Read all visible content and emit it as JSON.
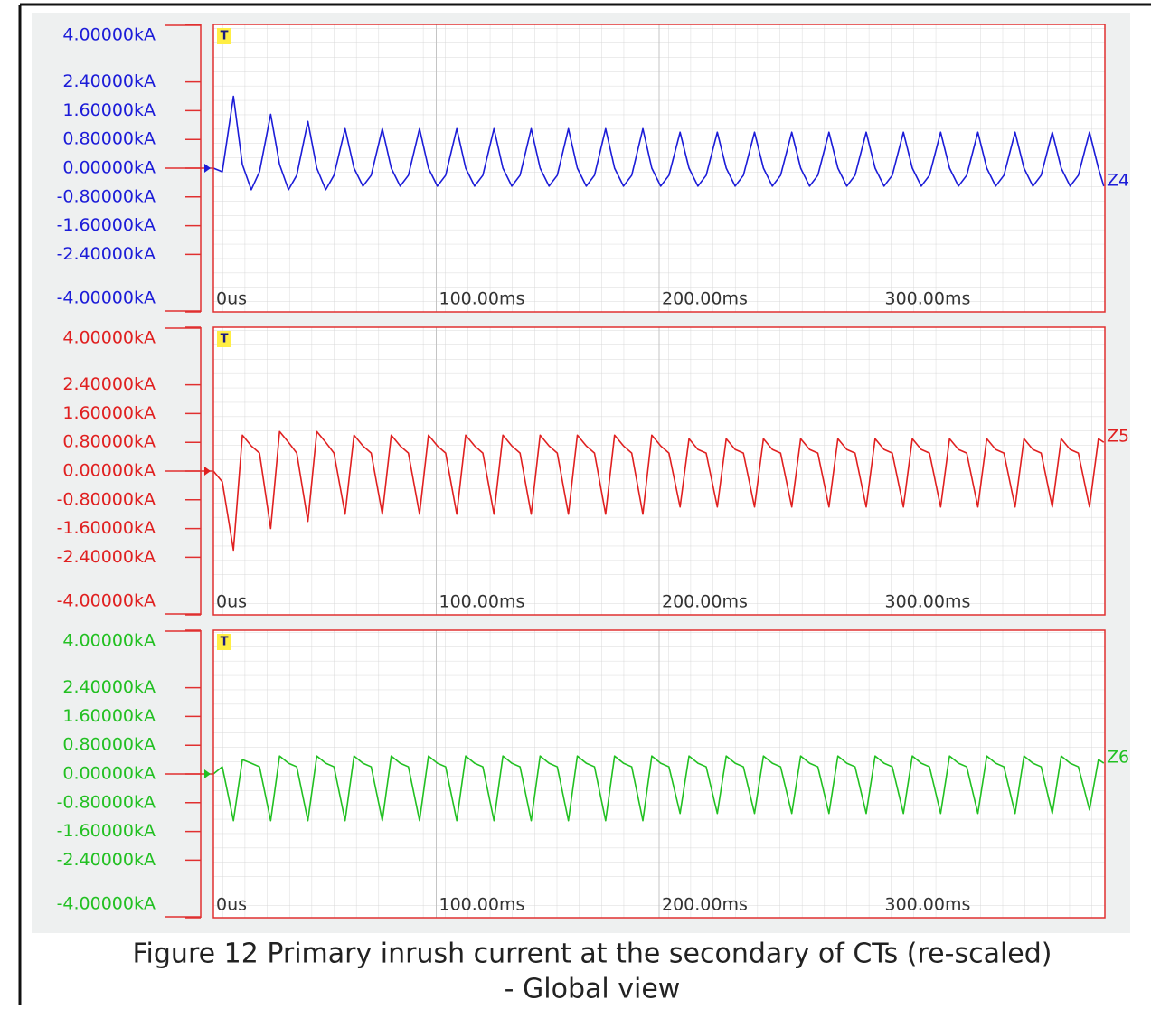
{
  "chart_data": [
    {
      "type": "line",
      "marker": "T",
      "xlim": [
        0,
        400
      ],
      "xticks": [
        {
          "value": 0,
          "label": "0us"
        },
        {
          "value": 100,
          "label": "100.00ms"
        },
        {
          "value": 200,
          "label": "200.00ms"
        },
        {
          "value": 300,
          "label": "300.00ms"
        }
      ],
      "ylim": [
        -4,
        4
      ],
      "yticks": [
        {
          "value": 4,
          "label": "4.00000kA"
        },
        {
          "value": 2.4,
          "label": "2.40000kA"
        },
        {
          "value": 1.6,
          "label": "1.60000kA"
        },
        {
          "value": 0.8,
          "label": "0.80000kA"
        },
        {
          "value": 0,
          "label": "0.00000kA"
        },
        {
          "value": -0.8,
          "label": "-0.80000kA"
        },
        {
          "value": -1.6,
          "label": "-1.60000kA"
        },
        {
          "value": -2.4,
          "label": "-2.40000kA"
        },
        {
          "value": -4,
          "label": "-4.00000kA"
        }
      ],
      "x": [
        0,
        4,
        9,
        13,
        17,
        20.7,
        25.7,
        29.7,
        33.7,
        37.4,
        42.4,
        46.4,
        50.4,
        54.1,
        59.1,
        63.1,
        67.1,
        70.8,
        75.8,
        79.8,
        83.8,
        87.5,
        92.5,
        96.5,
        100.5,
        104.2,
        109.2,
        113.2,
        117.2,
        120.9,
        125.9,
        129.9,
        133.9,
        137.6,
        142.6,
        146.6,
        150.6,
        154.3,
        159.3,
        163.3,
        167.3,
        171,
        176,
        180,
        184,
        187.7,
        192.7,
        196.7,
        200.7,
        204.4,
        209.4,
        213.4,
        217.4,
        221.1,
        226.1,
        230.1,
        234.1,
        237.8,
        242.8,
        246.8,
        250.8,
        254.5,
        259.5,
        263.5,
        267.5,
        271.2,
        276.2,
        280.2,
        284.2,
        287.9,
        292.9,
        296.9,
        300.9,
        304.6,
        309.6,
        313.6,
        317.6,
        321.3,
        326.3,
        330.3,
        334.3,
        338,
        343,
        347,
        351,
        354.7,
        359.7,
        363.7,
        367.7,
        371.4,
        376.4,
        380.4,
        384.4,
        388.1,
        393.1,
        397.1,
        399.5
      ],
      "series": [
        {
          "name": "Z4",
          "color": "#1c1cd8",
          "values": [
            0,
            -0.1,
            2.0,
            0.1,
            -0.6,
            -0.1,
            1.5,
            0.1,
            -0.6,
            -0.2,
            1.3,
            0,
            -0.6,
            -0.2,
            1.1,
            0,
            -0.5,
            -0.2,
            1.1,
            0,
            -0.5,
            -0.2,
            1.1,
            0,
            -0.5,
            -0.2,
            1.1,
            0,
            -0.5,
            -0.2,
            1.1,
            0,
            -0.5,
            -0.2,
            1.1,
            0,
            -0.5,
            -0.2,
            1.1,
            0,
            -0.5,
            -0.2,
            1.1,
            0,
            -0.5,
            -0.2,
            1.1,
            0,
            -0.5,
            -0.2,
            1.0,
            0,
            -0.5,
            -0.2,
            1.0,
            0,
            -0.5,
            -0.2,
            1.0,
            0,
            -0.5,
            -0.2,
            1.0,
            0,
            -0.5,
            -0.2,
            1.0,
            0,
            -0.5,
            -0.2,
            1.0,
            0,
            -0.5,
            -0.2,
            1.0,
            0,
            -0.5,
            -0.2,
            1.0,
            0,
            -0.5,
            -0.2,
            1.0,
            0,
            -0.5,
            -0.2,
            1.0,
            0,
            -0.5,
            -0.2,
            1.0,
            0,
            -0.5,
            -0.2,
            1.0,
            0,
            -0.5
          ]
        }
      ]
    },
    {
      "type": "line",
      "marker": "T",
      "xlim": [
        0,
        400
      ],
      "xticks": [
        {
          "value": 0,
          "label": "0us"
        },
        {
          "value": 100,
          "label": "100.00ms"
        },
        {
          "value": 200,
          "label": "200.00ms"
        },
        {
          "value": 300,
          "label": "300.00ms"
        }
      ],
      "ylim": [
        -4,
        4
      ],
      "yticks": [
        {
          "value": 4,
          "label": "4.00000kA"
        },
        {
          "value": 2.4,
          "label": "2.40000kA"
        },
        {
          "value": 1.6,
          "label": "1.60000kA"
        },
        {
          "value": 0.8,
          "label": "0.80000kA"
        },
        {
          "value": 0,
          "label": "0.00000kA"
        },
        {
          "value": -0.8,
          "label": "-0.80000kA"
        },
        {
          "value": -1.6,
          "label": "-1.60000kA"
        },
        {
          "value": -2.4,
          "label": "-2.40000kA"
        },
        {
          "value": -4,
          "label": "-4.00000kA"
        }
      ],
      "x": [
        0,
        4,
        9,
        13,
        17,
        20.7,
        25.7,
        29.7,
        33.7,
        37.4,
        42.4,
        46.4,
        50.4,
        54.1,
        59.1,
        63.1,
        67.1,
        70.8,
        75.8,
        79.8,
        83.8,
        87.5,
        92.5,
        96.5,
        100.5,
        104.2,
        109.2,
        113.2,
        117.2,
        120.9,
        125.9,
        129.9,
        133.9,
        137.6,
        142.6,
        146.6,
        150.6,
        154.3,
        159.3,
        163.3,
        167.3,
        171,
        176,
        180,
        184,
        187.7,
        192.7,
        196.7,
        200.7,
        204.4,
        209.4,
        213.4,
        217.4,
        221.1,
        226.1,
        230.1,
        234.1,
        237.8,
        242.8,
        246.8,
        250.8,
        254.5,
        259.5,
        263.5,
        267.5,
        271.2,
        276.2,
        280.2,
        284.2,
        287.9,
        292.9,
        296.9,
        300.9,
        304.6,
        309.6,
        313.6,
        317.6,
        321.3,
        326.3,
        330.3,
        334.3,
        338,
        343,
        347,
        351,
        354.7,
        359.7,
        363.7,
        367.7,
        371.4,
        376.4,
        380.4,
        384.4,
        388.1,
        393.1,
        397.1,
        399.5
      ],
      "series": [
        {
          "name": "Z5",
          "color": "#e02020",
          "values": [
            0,
            -0.3,
            -2.2,
            1.0,
            0.7,
            0.5,
            -1.6,
            1.1,
            0.8,
            0.5,
            -1.4,
            1.1,
            0.8,
            0.5,
            -1.2,
            1.0,
            0.7,
            0.5,
            -1.2,
            1.0,
            0.7,
            0.5,
            -1.2,
            1.0,
            0.7,
            0.5,
            -1.2,
            1.0,
            0.7,
            0.5,
            -1.2,
            1.0,
            0.7,
            0.5,
            -1.2,
            1.0,
            0.7,
            0.5,
            -1.2,
            1.0,
            0.7,
            0.5,
            -1.2,
            1.0,
            0.7,
            0.5,
            -1.2,
            1.0,
            0.7,
            0.5,
            -1.0,
            0.9,
            0.6,
            0.5,
            -1.0,
            0.9,
            0.6,
            0.5,
            -1.0,
            0.9,
            0.6,
            0.5,
            -1.0,
            0.9,
            0.6,
            0.5,
            -1.0,
            0.9,
            0.6,
            0.5,
            -1.0,
            0.9,
            0.6,
            0.5,
            -1.0,
            0.9,
            0.6,
            0.5,
            -1.0,
            0.9,
            0.6,
            0.5,
            -1.0,
            0.9,
            0.6,
            0.5,
            -1.0,
            0.9,
            0.6,
            0.5,
            -1.0,
            0.9,
            0.6,
            0.5,
            -1.0,
            0.9,
            0.8
          ]
        }
      ]
    },
    {
      "type": "line",
      "marker": "T",
      "xlim": [
        0,
        400
      ],
      "xticks": [
        {
          "value": 0,
          "label": "0us"
        },
        {
          "value": 100,
          "label": "100.00ms"
        },
        {
          "value": 200,
          "label": "200.00ms"
        },
        {
          "value": 300,
          "label": "300.00ms"
        }
      ],
      "ylim": [
        -4,
        4
      ],
      "yticks": [
        {
          "value": 4,
          "label": "4.00000kA"
        },
        {
          "value": 2.4,
          "label": "2.40000kA"
        },
        {
          "value": 1.6,
          "label": "1.60000kA"
        },
        {
          "value": 0.8,
          "label": "0.80000kA"
        },
        {
          "value": 0,
          "label": "0.00000kA"
        },
        {
          "value": -0.8,
          "label": "-0.80000kA"
        },
        {
          "value": -1.6,
          "label": "-1.60000kA"
        },
        {
          "value": -2.4,
          "label": "-2.40000kA"
        },
        {
          "value": -4,
          "label": "-4.00000kA"
        }
      ],
      "x": [
        0,
        4,
        9,
        13,
        17,
        20.7,
        25.7,
        29.7,
        33.7,
        37.4,
        42.4,
        46.4,
        50.4,
        54.1,
        59.1,
        63.1,
        67.1,
        70.8,
        75.8,
        79.8,
        83.8,
        87.5,
        92.5,
        96.5,
        100.5,
        104.2,
        109.2,
        113.2,
        117.2,
        120.9,
        125.9,
        129.9,
        133.9,
        137.6,
        142.6,
        146.6,
        150.6,
        154.3,
        159.3,
        163.3,
        167.3,
        171,
        176,
        180,
        184,
        187.7,
        192.7,
        196.7,
        200.7,
        204.4,
        209.4,
        213.4,
        217.4,
        221.1,
        226.1,
        230.1,
        234.1,
        237.8,
        242.8,
        246.8,
        250.8,
        254.5,
        259.5,
        263.5,
        267.5,
        271.2,
        276.2,
        280.2,
        284.2,
        287.9,
        292.9,
        296.9,
        300.9,
        304.6,
        309.6,
        313.6,
        317.6,
        321.3,
        326.3,
        330.3,
        334.3,
        338,
        343,
        347,
        351,
        354.7,
        359.7,
        363.7,
        367.7,
        371.4,
        376.4,
        380.4,
        384.4,
        388.1,
        393.1,
        397.1,
        399.5
      ],
      "series": [
        {
          "name": "Z6",
          "color": "#22c022",
          "values": [
            0,
            0.2,
            -1.3,
            0.4,
            0.3,
            0.2,
            -1.3,
            0.5,
            0.3,
            0.2,
            -1.3,
            0.5,
            0.3,
            0.2,
            -1.3,
            0.5,
            0.3,
            0.2,
            -1.3,
            0.5,
            0.3,
            0.2,
            -1.3,
            0.5,
            0.3,
            0.2,
            -1.3,
            0.5,
            0.3,
            0.2,
            -1.3,
            0.5,
            0.3,
            0.2,
            -1.3,
            0.5,
            0.3,
            0.2,
            -1.3,
            0.5,
            0.3,
            0.2,
            -1.3,
            0.5,
            0.3,
            0.2,
            -1.3,
            0.5,
            0.3,
            0.2,
            -1.1,
            0.5,
            0.3,
            0.2,
            -1.1,
            0.5,
            0.3,
            0.2,
            -1.1,
            0.5,
            0.3,
            0.2,
            -1.1,
            0.5,
            0.3,
            0.2,
            -1.1,
            0.5,
            0.3,
            0.2,
            -1.1,
            0.5,
            0.3,
            0.2,
            -1.1,
            0.5,
            0.3,
            0.2,
            -1.1,
            0.5,
            0.3,
            0.2,
            -1.1,
            0.5,
            0.3,
            0.2,
            -1.1,
            0.5,
            0.3,
            0.2,
            -1.1,
            0.5,
            0.3,
            0.2,
            -1.0,
            0.4,
            0.3
          ]
        }
      ]
    }
  ],
  "caption": [
    "Figure 12 Primary inrush current at the secondary of CTs (re-scaled)",
    "- Global view"
  ]
}
